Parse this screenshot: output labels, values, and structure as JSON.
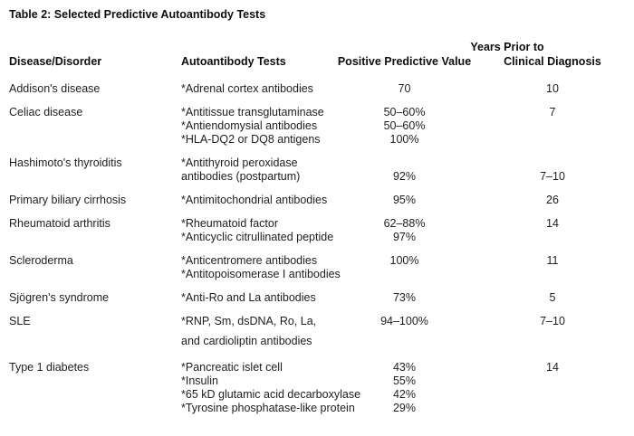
{
  "table": {
    "title": "Table 2: Selected Predictive Autoantibody Tests",
    "columns": {
      "disease": "Disease/Disorder",
      "tests": "Autoantibody Tests",
      "ppv": "Positive Predictive Value",
      "years_line1": "Years Prior to",
      "years_line2": "Clinical Diagnosis"
    },
    "rows": [
      {
        "disease": "Addison's disease",
        "tests": [
          "*Adrenal cortex antibodies"
        ],
        "ppv": [
          "70"
        ],
        "years": [
          "10"
        ]
      },
      {
        "disease": "Celiac disease",
        "tests": [
          "*Antitissue transglutaminase",
          "*Antiendomysial antibodies",
          "*HLA-DQ2 or DQ8 antigens"
        ],
        "ppv": [
          "50–60%",
          "50–60%",
          "100%"
        ],
        "years": [
          "7"
        ]
      },
      {
        "disease": "Hashimoto's thyroiditis",
        "tests": [
          "*Antithyroid peroxidase",
          "antibodies (postpartum)"
        ],
        "ppv": [
          "",
          "92%"
        ],
        "years": [
          "",
          "7–10"
        ]
      },
      {
        "disease": "Primary biliary cirrhosis",
        "tests": [
          "*Antimitochondrial antibodies"
        ],
        "ppv": [
          "95%"
        ],
        "years": [
          "26"
        ]
      },
      {
        "disease": "Rheumatoid arthritis",
        "tests": [
          "*Rheumatoid factor",
          "*Anticyclic citrullinated peptide"
        ],
        "ppv": [
          "62–88%",
          "97%"
        ],
        "years": [
          "14"
        ]
      },
      {
        "disease": "Scleroderma",
        "tests": [
          "*Anticentromere antibodies",
          "*Antitopoisomerase I antibodies"
        ],
        "ppv": [
          "100%"
        ],
        "years": [
          "11"
        ]
      },
      {
        "disease": "Sjögren's syndrome",
        "tests": [
          "*Anti-Ro and La antibodies"
        ],
        "ppv": [
          "73%"
        ],
        "years": [
          "5"
        ]
      },
      {
        "disease": "SLE",
        "tests": [
          "*RNP, Sm, dsDNA, Ro, La,",
          "and cardioliptin antibodies"
        ],
        "ppv": [
          "94–100%"
        ],
        "years": [
          "7–10"
        ],
        "spaced": true
      },
      {
        "disease": "Type 1 diabetes",
        "tests": [
          "*Pancreatic islet cell",
          "*Insulin",
          "*65 kD glutamic acid decarboxylase",
          "*Tyrosine phosphatase-like protein"
        ],
        "ppv": [
          "43%",
          "55%",
          "42%",
          "29%"
        ],
        "years": [
          "14"
        ],
        "pregap": true
      }
    ]
  }
}
